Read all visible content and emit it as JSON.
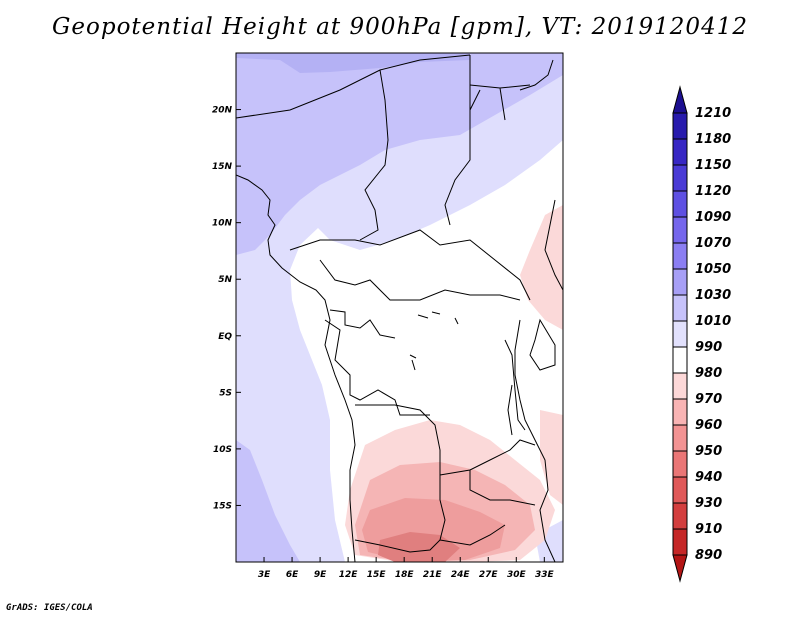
{
  "title": "Geopotential Height at 900hPa [gpm], VT: 2019120412",
  "credit": "GrADS: IGES/COLA",
  "map": {
    "lon_labels": [
      "3E",
      "6E",
      "9E",
      "12E",
      "15E",
      "18E",
      "21E",
      "24E",
      "27E",
      "30E",
      "33E"
    ],
    "lon_values": [
      3,
      6,
      9,
      12,
      15,
      18,
      21,
      24,
      27,
      30,
      33
    ],
    "lat_labels": [
      "20N",
      "15N",
      "10N",
      "5N",
      "EQ",
      "5S",
      "10S",
      "15S"
    ],
    "lat_values": [
      20,
      15,
      10,
      5,
      0,
      -5,
      -10,
      -15
    ],
    "lon_range": [
      0,
      35
    ],
    "lat_range": [
      -20,
      25
    ]
  },
  "colorbar": {
    "levels": [
      "1210",
      "1180",
      "1150",
      "1120",
      "1090",
      "1070",
      "1050",
      "1030",
      "1010",
      "990",
      "980",
      "970",
      "960",
      "950",
      "940",
      "930",
      "910",
      "890"
    ],
    "colors": [
      "#1c0f91",
      "#281bad",
      "#3727c4",
      "#4a3bd6",
      "#5e50e2",
      "#7566ec",
      "#8b7ef2",
      "#a79ff6",
      "#c6c2fa",
      "#e2e1fd",
      "#ffffff",
      "#fdd8d8",
      "#f9b4b4",
      "#f39393",
      "#ea7676",
      "#e05959",
      "#d33e3e",
      "#c52727",
      "#b31515"
    ]
  },
  "palette": {
    "lavender_high": "#b4b1f4",
    "lavender": "#c6c2fa",
    "pale": "#dfdefd",
    "pink": "#fbd9d9",
    "salmon": "#f5b5b5",
    "red": "#ee9d9d",
    "deep": "#e07f7f"
  }
}
